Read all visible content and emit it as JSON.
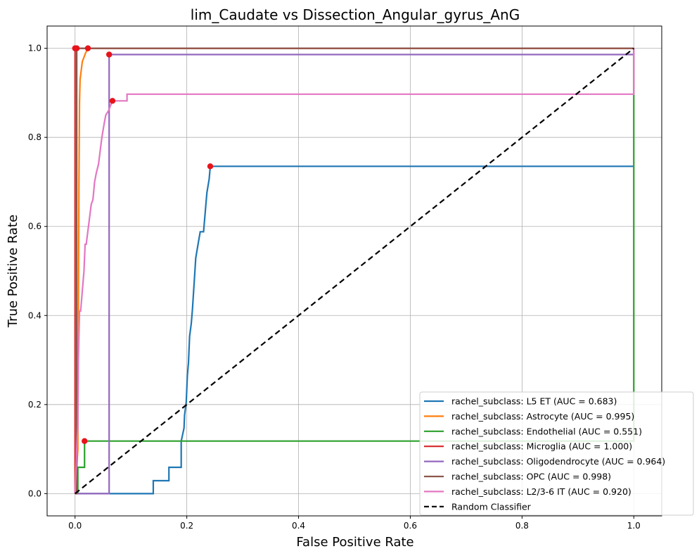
{
  "chart_data": {
    "type": "line",
    "title": "lim_Caudate vs Dissection_Angular_gyrus_AnG",
    "xlabel": "False Positive Rate",
    "ylabel": "True Positive Rate",
    "xlim": [
      -0.05,
      1.05
    ],
    "ylim": [
      -0.05,
      1.05
    ],
    "xticks": [
      0.0,
      0.2,
      0.4,
      0.6,
      0.8,
      1.0
    ],
    "yticks": [
      0.0,
      0.2,
      0.4,
      0.6,
      0.8,
      1.0
    ],
    "xtick_labels": [
      "0.0",
      "0.2",
      "0.4",
      "0.6",
      "0.8",
      "1.0"
    ],
    "ytick_labels": [
      "0.0",
      "0.2",
      "0.4",
      "0.6",
      "0.8",
      "1.0"
    ],
    "grid": true,
    "legend_position": "bottom-right",
    "series": [
      {
        "name": "rachel_subclass: L5 ET (AUC = 0.683)",
        "color": "#1f77b4",
        "x": [
          0.0,
          0.14,
          0.14,
          0.168,
          0.168,
          0.19,
          0.19,
          0.195,
          0.196,
          0.199,
          0.201,
          0.203,
          0.205,
          0.208,
          0.21,
          0.213,
          0.216,
          0.22,
          0.224,
          0.23,
          0.234,
          0.236,
          0.24,
          0.242,
          1.0
        ],
        "y": [
          0.0,
          0.0,
          0.029,
          0.029,
          0.059,
          0.059,
          0.118,
          0.147,
          0.176,
          0.206,
          0.265,
          0.294,
          0.353,
          0.382,
          0.412,
          0.47,
          0.529,
          0.559,
          0.588,
          0.588,
          0.647,
          0.676,
          0.706,
          0.735,
          0.735
        ],
        "marker": {
          "x": 0.242,
          "y": 0.735
        }
      },
      {
        "name": "rachel_subclass: Astrocyte (AUC = 0.995)",
        "color": "#ff7f0e",
        "x": [
          0.0,
          0.005,
          0.006,
          0.007,
          0.008,
          0.009,
          0.011,
          0.013,
          0.016,
          0.019,
          0.022,
          0.023,
          1.0
        ],
        "y": [
          0.0,
          0.1,
          0.4,
          0.7,
          0.88,
          0.93,
          0.95,
          0.97,
          0.98,
          0.99,
          0.997,
          1.0,
          1.0
        ],
        "marker": {
          "x": 0.023,
          "y": 1.0
        }
      },
      {
        "name": "rachel_subclass: Endothelial (AUC = 0.551)",
        "color": "#2ca02c",
        "x": [
          0.0,
          0.005,
          0.005,
          0.01,
          0.01,
          0.017,
          0.017,
          1.0,
          1.0
        ],
        "y": [
          0.0,
          0.0,
          0.059,
          0.059,
          0.059,
          0.059,
          0.118,
          0.118,
          1.0
        ],
        "marker": {
          "x": 0.017,
          "y": 0.118
        }
      },
      {
        "name": "rachel_subclass: Microglia (AUC = 1.000)",
        "color": "#d62728",
        "x": [
          0.0,
          0.0,
          1.0
        ],
        "y": [
          0.0,
          1.0,
          1.0
        ],
        "marker": {
          "x": 0.0,
          "y": 1.0
        }
      },
      {
        "name": "rachel_subclass: Oligodendrocyte (AUC = 0.964)",
        "color": "#9467bd",
        "x": [
          0.0,
          0.061,
          0.061,
          1.0,
          1.0
        ],
        "y": [
          0.0,
          0.0,
          0.986,
          0.986,
          1.0
        ],
        "marker": {
          "x": 0.061,
          "y": 0.986
        }
      },
      {
        "name": "rachel_subclass: OPC (AUC = 0.998)",
        "color": "#8c564b",
        "x": [
          0.0,
          0.003,
          0.003,
          1.0
        ],
        "y": [
          0.0,
          0.0,
          1.0,
          1.0
        ],
        "marker": {
          "x": 0.003,
          "y": 1.0
        }
      },
      {
        "name": "rachel_subclass: L2/3-6 IT (AUC = 0.920)",
        "color": "#e377c2",
        "x": [
          0.0,
          0.003,
          0.005,
          0.006,
          0.008,
          0.01,
          0.012,
          0.014,
          0.016,
          0.018,
          0.02,
          0.023,
          0.026,
          0.029,
          0.032,
          0.035,
          0.038,
          0.042,
          0.045,
          0.048,
          0.052,
          0.055,
          0.06,
          0.063,
          0.067,
          0.075,
          0.093,
          0.093,
          1.0,
          1.0
        ],
        "y": [
          0.0,
          0.1,
          0.15,
          0.3,
          0.41,
          0.41,
          0.44,
          0.47,
          0.5,
          0.56,
          0.56,
          0.59,
          0.62,
          0.65,
          0.66,
          0.7,
          0.72,
          0.74,
          0.77,
          0.8,
          0.83,
          0.85,
          0.86,
          0.87,
          0.882,
          0.882,
          0.882,
          0.897,
          0.897,
          1.0
        ],
        "marker": {
          "x": 0.067,
          "y": 0.882
        }
      },
      {
        "name": "Random Classifier",
        "color": "#000000",
        "dashed": true,
        "x": [
          0.0,
          1.0
        ],
        "y": [
          0.0,
          1.0
        ]
      }
    ]
  }
}
